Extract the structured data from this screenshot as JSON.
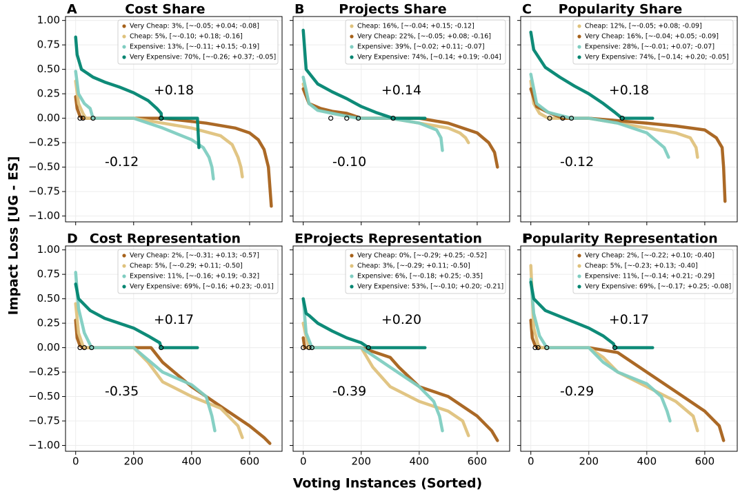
{
  "xlabel": "Voting Instances (Sorted)",
  "ylabel": "Impact Loss [UG - ES]",
  "xlim": [
    -35,
    712
  ],
  "ylim": [
    -1.06,
    1.04
  ],
  "xticks": [
    0,
    200,
    400,
    600
  ],
  "yticks": [
    {
      "value": -1,
      "label": "−1.00"
    },
    {
      "value": -0.75,
      "label": "−0.75"
    },
    {
      "value": -0.5,
      "label": "−0.50"
    },
    {
      "value": -0.25,
      "label": "−0.25"
    },
    {
      "value": 0,
      "label": "0.00"
    },
    {
      "value": 0.25,
      "label": "0.25"
    },
    {
      "value": 0.5,
      "label": "0.50"
    },
    {
      "value": 0.75,
      "label": "0.75"
    },
    {
      "value": 1,
      "label": "1.00"
    }
  ],
  "chart_data": [
    {
      "type": "line",
      "letter": "A",
      "title": "Cost Share",
      "annotations": [
        "+0.18",
        "-0.12"
      ],
      "zero_points": [
        15,
        25,
        60,
        295
      ],
      "series": [
        {
          "name": "Very Cheap: 3%, [~-0.05; +0.04; -0.08]",
          "color": "#a6611a",
          "x": [
            0,
            5,
            15,
            25,
            200,
            300,
            450,
            550,
            600,
            630,
            650,
            665,
            675
          ],
          "values": [
            0.22,
            0.1,
            0.02,
            0,
            0,
            0,
            -0.05,
            -0.1,
            -0.15,
            -0.22,
            -0.32,
            -0.5,
            -0.9
          ]
        },
        {
          "name": "Cheap: 5%, [~-0.10; +0.18; -0.16]",
          "color": "#dfc27d",
          "x": [
            0,
            10,
            25,
            35,
            200,
            300,
            400,
            500,
            540,
            560,
            570,
            575
          ],
          "values": [
            0.38,
            0.15,
            0.05,
            0,
            0,
            -0.05,
            -0.1,
            -0.18,
            -0.27,
            -0.4,
            -0.5,
            -0.6
          ]
        },
        {
          "name": "Expensive: 13%, [~-0.11; +0.15; -0.19]",
          "color": "#80cdc1",
          "x": [
            0,
            10,
            30,
            50,
            60,
            200,
            300,
            400,
            440,
            460,
            470,
            475
          ],
          "values": [
            0.48,
            0.25,
            0.15,
            0.1,
            0,
            0,
            -0.1,
            -0.22,
            -0.3,
            -0.4,
            -0.5,
            -0.62
          ]
        },
        {
          "name": "Very Expensive: 70%, [~-0.26; +0.37; -0.05]",
          "color": "#018571",
          "x": [
            0,
            5,
            20,
            60,
            100,
            150,
            200,
            250,
            280,
            295,
            296,
            350,
            420,
            425
          ],
          "values": [
            0.83,
            0.65,
            0.5,
            0.42,
            0.37,
            0.32,
            0.26,
            0.18,
            0.1,
            0.05,
            0,
            0,
            0,
            -0.3
          ]
        }
      ]
    },
    {
      "type": "line",
      "letter": "B",
      "title": "Projects Share",
      "annotations": [
        "+0.14",
        "-0.10"
      ],
      "zero_points": [
        95,
        150,
        190,
        310
      ],
      "series": [
        {
          "name": "Cheap: 16%, [~-0.04; +0.15; -0.12]",
          "color": "#dfc27d",
          "x": [
            0,
            20,
            60,
            100,
            150,
            200,
            300,
            400,
            500,
            540,
            560,
            570
          ],
          "values": [
            0.35,
            0.15,
            0.08,
            0.05,
            0.02,
            0,
            0,
            -0.05,
            -0.1,
            -0.15,
            -0.2,
            -0.25
          ]
        },
        {
          "name": "Very Cheap: 22%, [~-0.05; +0.08; -0.16]",
          "color": "#a6611a",
          "x": [
            0,
            20,
            60,
            100,
            150,
            200,
            400,
            500,
            600,
            640,
            660,
            670
          ],
          "values": [
            0.3,
            0.15,
            0.1,
            0.07,
            0.05,
            0,
            0,
            -0.05,
            -0.15,
            -0.25,
            -0.35,
            -0.5
          ]
        },
        {
          "name": "Expensive: 39%, [~0.02; +0.11; -0.07]",
          "color": "#80cdc1",
          "x": [
            0,
            20,
            50,
            100,
            150,
            190,
            300,
            400,
            460,
            475,
            480
          ],
          "values": [
            0.42,
            0.15,
            0.08,
            0.05,
            0.02,
            0,
            0,
            -0.05,
            -0.12,
            -0.2,
            -0.33
          ]
        },
        {
          "name": "Very Expensive: 74%, [~0.14; +0.19; -0.04]",
          "color": "#018571",
          "x": [
            0,
            10,
            50,
            100,
            150,
            200,
            250,
            290,
            310,
            420
          ],
          "values": [
            0.9,
            0.5,
            0.35,
            0.27,
            0.2,
            0.12,
            0.06,
            0.02,
            0,
            0
          ]
        }
      ]
    },
    {
      "type": "line",
      "letter": "C",
      "title": "Popularity Share",
      "annotations": [
        "+0.18",
        "-0.12"
      ],
      "zero_points": [
        65,
        110,
        140,
        315
      ],
      "series": [
        {
          "name": "Cheap: 12%, [~-0.05; +0.08; -0.09]",
          "color": "#dfc27d",
          "x": [
            0,
            10,
            30,
            60,
            200,
            300,
            400,
            500,
            550,
            570,
            575
          ],
          "values": [
            0.38,
            0.15,
            0.05,
            0,
            0,
            -0.05,
            -0.1,
            -0.15,
            -0.2,
            -0.3,
            -0.4
          ]
        },
        {
          "name": "Very Cheap: 16%, [~-0.04; +0.05; -0.09]",
          "color": "#a6611a",
          "x": [
            0,
            20,
            60,
            110,
            200,
            400,
            500,
            600,
            640,
            660,
            665,
            670
          ],
          "values": [
            0.3,
            0.12,
            0.06,
            0,
            0,
            -0.05,
            -0.08,
            -0.12,
            -0.2,
            -0.3,
            -0.5,
            -0.85
          ]
        },
        {
          "name": "Expensive: 28%, [~-0.01; +0.07; -0.07]",
          "color": "#80cdc1",
          "x": [
            0,
            20,
            60,
            100,
            140,
            200,
            300,
            400,
            460,
            475
          ],
          "values": [
            0.45,
            0.15,
            0.06,
            0.03,
            0,
            0,
            -0.05,
            -0.15,
            -0.3,
            -0.4
          ]
        },
        {
          "name": "Very Expensive: 74%, [~0.14; +0.20; -0.05]",
          "color": "#018571",
          "x": [
            0,
            10,
            50,
            100,
            150,
            200,
            250,
            290,
            315,
            420
          ],
          "values": [
            0.88,
            0.7,
            0.52,
            0.42,
            0.33,
            0.25,
            0.15,
            0.06,
            0,
            0
          ]
        }
      ]
    },
    {
      "type": "line",
      "letter": "D",
      "title": "Cost Representation",
      "annotations": [
        "+0.17",
        "-0.35"
      ],
      "zero_points": [
        15,
        30,
        55,
        295
      ],
      "series": [
        {
          "name": "Very Cheap: 2%, [~-0.31; +0.13; -0.57]",
          "color": "#a6611a",
          "x": [
            0,
            5,
            15,
            25,
            200,
            260,
            300,
            400,
            500,
            600,
            650,
            670
          ],
          "values": [
            0.28,
            0.1,
            0.02,
            0,
            0,
            0,
            -0.15,
            -0.4,
            -0.6,
            -0.8,
            -0.92,
            -0.98
          ]
        },
        {
          "name": "Cheap: 5%, [~-0.29; +0.11; -0.50]",
          "color": "#dfc27d",
          "x": [
            0,
            10,
            25,
            35,
            200,
            250,
            300,
            400,
            500,
            560,
            575
          ],
          "values": [
            0.45,
            0.15,
            0.02,
            0,
            0,
            -0.15,
            -0.35,
            -0.5,
            -0.62,
            -0.8,
            -0.92
          ]
        },
        {
          "name": "Expensive: 11%, [~-0.16; +0.19; -0.32]",
          "color": "#80cdc1",
          "x": [
            0,
            10,
            30,
            55,
            200,
            240,
            300,
            400,
            450,
            470,
            480
          ],
          "values": [
            0.77,
            0.4,
            0.15,
            0,
            0,
            -0.1,
            -0.25,
            -0.38,
            -0.5,
            -0.7,
            -0.85
          ]
        },
        {
          "name": "Very Expensive: 69%, [~0.16; +0.23; -0.01]",
          "color": "#018571",
          "x": [
            0,
            10,
            50,
            100,
            150,
            200,
            250,
            290,
            295,
            420
          ],
          "values": [
            0.65,
            0.5,
            0.38,
            0.3,
            0.25,
            0.2,
            0.12,
            0.05,
            0,
            0
          ]
        }
      ]
    },
    {
      "type": "line",
      "letter": "E",
      "title": "Projects Representation",
      "annotations": [
        "+0.20",
        "-0.39"
      ],
      "zero_points": [
        0,
        20,
        30,
        225
      ],
      "series": [
        {
          "name": "Very Cheap: 0%, [~-0.29; +0.25; -0.52]",
          "color": "#a6611a",
          "x": [
            0,
            5,
            10,
            200,
            300,
            330,
            400,
            500,
            600,
            650,
            670
          ],
          "values": [
            0.1,
            0,
            0,
            0,
            -0.1,
            -0.2,
            -0.4,
            -0.5,
            -0.7,
            -0.85,
            -0.95
          ]
        },
        {
          "name": "Cheap: 3%, [~-0.29; +0.11; -0.50]",
          "color": "#dfc27d",
          "x": [
            0,
            15,
            20,
            200,
            240,
            300,
            400,
            500,
            550,
            570
          ],
          "values": [
            0.25,
            0.05,
            0,
            0,
            -0.2,
            -0.4,
            -0.55,
            -0.65,
            -0.75,
            -0.9
          ]
        },
        {
          "name": "Expensive: 6%, [~-0.18; +0.25; -0.35]",
          "color": "#80cdc1",
          "x": [
            0,
            10,
            30,
            200,
            300,
            400,
            450,
            470,
            480
          ],
          "values": [
            0.5,
            0.15,
            0,
            0,
            -0.2,
            -0.4,
            -0.55,
            -0.7,
            -0.85
          ]
        },
        {
          "name": "Very Expensive: 53%, [~-0.10; +0.20; -0.21]",
          "color": "#018571",
          "x": [
            0,
            10,
            20,
            50,
            100,
            150,
            200,
            225,
            420
          ],
          "values": [
            0.5,
            0.35,
            0.33,
            0.25,
            0.17,
            0.1,
            0.05,
            0,
            0
          ]
        }
      ]
    },
    {
      "type": "line",
      "letter": "F",
      "title": "Popularity Representation",
      "annotations": [
        "+0.17",
        "-0.29"
      ],
      "zero_points": [
        15,
        25,
        55,
        290
      ],
      "series": [
        {
          "name": "Very Cheap: 2%, [~-0.22; +0.10; -0.40]",
          "color": "#a6611a",
          "x": [
            0,
            5,
            15,
            25,
            200,
            300,
            400,
            500,
            600,
            650,
            665
          ],
          "values": [
            0.28,
            0.1,
            0.02,
            0,
            0,
            -0.05,
            -0.25,
            -0.45,
            -0.65,
            -0.8,
            -0.95
          ]
        },
        {
          "name": "Cheap: 5%, [~-0.23; +0.13; -0.40]",
          "color": "#dfc27d",
          "x": [
            0,
            10,
            25,
            35,
            200,
            250,
            300,
            400,
            500,
            560,
            575
          ],
          "values": [
            0.84,
            0.2,
            0.03,
            0,
            0,
            -0.1,
            -0.25,
            -0.4,
            -0.55,
            -0.7,
            -0.85
          ]
        },
        {
          "name": "Expensive: 11%, [~-0.14; +0.21; -0.29]",
          "color": "#80cdc1",
          "x": [
            0,
            10,
            30,
            55,
            200,
            250,
            300,
            400,
            450,
            470,
            480
          ],
          "values": [
            0.7,
            0.35,
            0.12,
            0,
            0,
            -0.15,
            -0.25,
            -0.37,
            -0.5,
            -0.65,
            -0.75
          ]
        },
        {
          "name": "Very Expensive: 69%, [~-0.17; +0.25; -0.08]",
          "color": "#018571",
          "x": [
            0,
            10,
            50,
            100,
            150,
            200,
            250,
            285,
            290,
            420
          ],
          "values": [
            0.67,
            0.5,
            0.38,
            0.32,
            0.26,
            0.2,
            0.12,
            0.04,
            0,
            0
          ]
        }
      ]
    }
  ]
}
